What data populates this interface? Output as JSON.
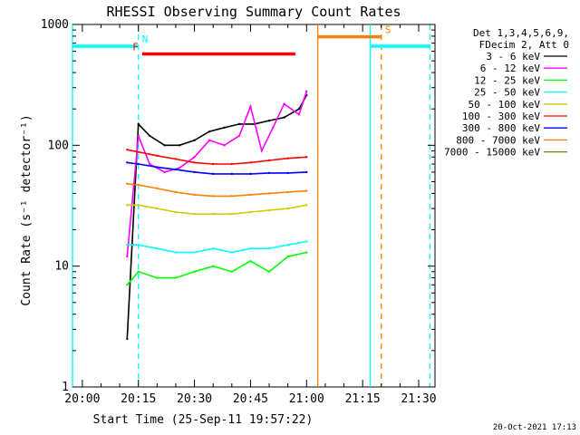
{
  "chart_data": {
    "type": "line",
    "title": "RHESSI Observing Summary Count Rates",
    "xlabel": "Start Time (25-Sep-11 19:57:22)",
    "ylabel": "Count Rate (s⁻¹ detector⁻¹)",
    "yscale": "log",
    "ylim": [
      1,
      1000
    ],
    "xlim_minutes_after_19_57_22": [
      0,
      97
    ],
    "x_ticks": [
      "20:00",
      "20:15",
      "20:30",
      "20:45",
      "21:00",
      "21:15",
      "21:30"
    ],
    "y_ticks": [
      "1",
      "10",
      "100",
      "1000"
    ],
    "legend_header": [
      "Det 1,3,4,5,6,9,",
      "FDecim 2, Att 0"
    ],
    "legend_position": "top-right",
    "series": [
      {
        "name": "3 - 6 keV",
        "color": "#000000",
        "x": [
          "20:12",
          "20:15",
          "20:18",
          "20:22",
          "20:26",
          "20:30",
          "20:34",
          "20:38",
          "20:42",
          "20:46",
          "20:50",
          "20:54",
          "20:58",
          "21:00"
        ],
        "values": [
          2.5,
          150,
          120,
          100,
          100,
          110,
          130,
          140,
          150,
          150,
          160,
          170,
          200,
          260
        ]
      },
      {
        "name": "6 - 12 keV",
        "color": "#ff00ff",
        "x": [
          "20:12",
          "20:15",
          "20:18",
          "20:22",
          "20:26",
          "20:30",
          "20:34",
          "20:38",
          "20:42",
          "20:45",
          "20:48",
          "20:51",
          "20:54",
          "20:58",
          "21:00"
        ],
        "values": [
          12,
          120,
          70,
          60,
          65,
          80,
          110,
          100,
          120,
          210,
          90,
          140,
          220,
          180,
          280
        ]
      },
      {
        "name": "12 - 25 keV",
        "color": "#00ff00",
        "x": [
          "20:12",
          "20:15",
          "20:20",
          "20:25",
          "20:30",
          "20:35",
          "20:40",
          "20:45",
          "20:50",
          "20:55",
          "21:00"
        ],
        "values": [
          7,
          9,
          8,
          8,
          9,
          10,
          9,
          11,
          9,
          12,
          13
        ]
      },
      {
        "name": "25 - 50 keV",
        "color": "#00ffff",
        "x": [
          "20:12",
          "20:15",
          "20:20",
          "20:25",
          "20:30",
          "20:35",
          "20:40",
          "20:45",
          "20:50",
          "20:55",
          "21:00"
        ],
        "values": [
          15,
          15,
          14,
          13,
          13,
          14,
          13,
          14,
          14,
          15,
          16
        ]
      },
      {
        "name": "50 - 100 keV",
        "color": "#cccc00",
        "x": [
          "20:12",
          "20:15",
          "20:20",
          "20:25",
          "20:30",
          "20:35",
          "20:40",
          "20:45",
          "20:50",
          "20:55",
          "21:00"
        ],
        "values": [
          32,
          32,
          30,
          28,
          27,
          27,
          27,
          28,
          29,
          30,
          32
        ]
      },
      {
        "name": "100 - 300 keV",
        "color": "#ff0000",
        "x": [
          "20:12",
          "20:15",
          "20:20",
          "20:25",
          "20:30",
          "20:35",
          "20:40",
          "20:45",
          "20:50",
          "20:55",
          "21:00"
        ],
        "values": [
          92,
          88,
          82,
          77,
          72,
          70,
          70,
          72,
          75,
          78,
          80
        ]
      },
      {
        "name": "300 - 800 keV",
        "color": "#0000ff",
        "x": [
          "20:12",
          "20:15",
          "20:20",
          "20:25",
          "20:30",
          "20:35",
          "20:40",
          "20:45",
          "20:50",
          "20:55",
          "21:00"
        ],
        "values": [
          72,
          70,
          66,
          63,
          60,
          58,
          58,
          58,
          59,
          59,
          60
        ]
      },
      {
        "name": "800 - 7000 keV",
        "color": "#ff8000",
        "x": [
          "20:12",
          "20:15",
          "20:20",
          "20:25",
          "20:30",
          "20:35",
          "20:40",
          "20:45",
          "20:50",
          "20:55",
          "21:00"
        ],
        "values": [
          48,
          47,
          44,
          41,
          39,
          38,
          38,
          39,
          40,
          41,
          42
        ]
      },
      {
        "name": "7000 - 15000 keV",
        "color": "#808000",
        "x": [],
        "values": []
      }
    ],
    "flags": [
      {
        "label": "N",
        "color": "#00ffff",
        "segments": [
          [
            "19:57:22",
            "20:15"
          ],
          [
            "21:17",
            "21:33"
          ]
        ],
        "level": 660
      },
      {
        "label": "F",
        "color": "#ff0000",
        "segments": [
          [
            "20:16",
            "20:57"
          ]
        ],
        "level": 570
      },
      {
        "label": "S",
        "color": "#ff8000",
        "segments": [
          [
            "21:03",
            "21:20"
          ]
        ],
        "level": 790
      }
    ],
    "vertical_markers": [
      {
        "time": "19:57:22",
        "color": "#00ffff",
        "style": "solid"
      },
      {
        "time": "20:15",
        "color": "#00ffff",
        "style": "dashed"
      },
      {
        "time": "21:03",
        "color": "#ff8000",
        "style": "solid"
      },
      {
        "time": "21:17",
        "color": "#00ffff",
        "style": "solid"
      },
      {
        "time": "21:20",
        "color": "#ff8000",
        "style": "dashed"
      },
      {
        "time": "21:33",
        "color": "#00ffff",
        "style": "dashed"
      }
    ],
    "footer": "20-Oct-2021 17:13"
  }
}
